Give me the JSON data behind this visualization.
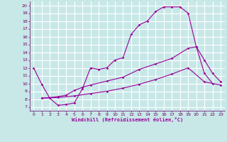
{
  "xlabel": "Windchill (Refroidissement éolien,°C)",
  "bg_color": "#c8e8e8",
  "grid_color": "#ffffff",
  "line_color": "#990099",
  "xlim": [
    -0.5,
    23.5
  ],
  "ylim": [
    6.5,
    20.5
  ],
  "xticks": [
    0,
    1,
    2,
    3,
    4,
    5,
    6,
    7,
    8,
    9,
    10,
    11,
    12,
    13,
    14,
    15,
    16,
    17,
    18,
    19,
    20,
    21,
    22,
    23
  ],
  "yticks": [
    7,
    8,
    9,
    10,
    11,
    12,
    13,
    14,
    15,
    16,
    17,
    18,
    19,
    20
  ],
  "series": [
    {
      "x": [
        0,
        1,
        2,
        3,
        4,
        5,
        6,
        7,
        8,
        9,
        10,
        11,
        12,
        13,
        14,
        15,
        16,
        17,
        18,
        19,
        20,
        21,
        22
      ],
      "y": [
        12,
        9.9,
        8.1,
        7.2,
        7.3,
        7.5,
        9.3,
        12.0,
        11.8,
        12.0,
        13.0,
        13.3,
        16.3,
        17.5,
        18.0,
        19.2,
        19.8,
        19.8,
        19.8,
        19.0,
        14.7,
        11.3,
        10.0
      ]
    },
    {
      "x": [
        1,
        3,
        4,
        5,
        6,
        7,
        9,
        11,
        13,
        15,
        17,
        19,
        20,
        21,
        22,
        23
      ],
      "y": [
        8.1,
        8.3,
        8.5,
        9.1,
        9.5,
        9.8,
        10.3,
        10.8,
        11.8,
        12.5,
        13.2,
        14.5,
        14.7,
        13.0,
        11.3,
        10.2
      ]
    },
    {
      "x": [
        1,
        3,
        5,
        7,
        9,
        11,
        13,
        15,
        17,
        19,
        21,
        23
      ],
      "y": [
        8.1,
        8.2,
        8.4,
        8.7,
        9.0,
        9.4,
        9.9,
        10.5,
        11.2,
        12.0,
        10.2,
        9.8
      ]
    }
  ]
}
